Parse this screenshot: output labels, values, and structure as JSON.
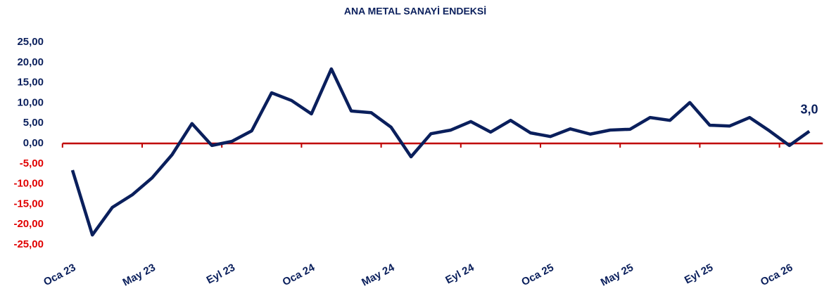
{
  "chart_data": {
    "type": "line",
    "title": "ANA METAL SANAYİ ENDEKSİ",
    "categories": [
      "Oca 23",
      null,
      null,
      null,
      "May 23",
      null,
      null,
      null,
      "Eyl 23",
      null,
      null,
      null,
      "Oca 24",
      null,
      null,
      null,
      "May 24",
      null,
      null,
      null,
      "Eyl 24",
      null,
      null,
      null,
      "Oca 25",
      null,
      null,
      null,
      "May 25",
      null,
      null,
      null,
      "Eyl 25",
      null,
      null,
      null,
      "Oca 26",
      null
    ],
    "series": [
      {
        "color": "#0a1f5c",
        "values": [
          -6.6,
          -22.6,
          -15.8,
          -12.7,
          -8.5,
          -2.8,
          4.9,
          -0.5,
          0.5,
          3.1,
          12.5,
          10.6,
          7.3,
          18.4,
          8.0,
          7.6,
          4.0,
          -3.3,
          2.4,
          3.3,
          5.4,
          2.8,
          5.7,
          2.6,
          1.7,
          3.6,
          2.3,
          3.3,
          3.5,
          6.4,
          5.7,
          10.1,
          4.5,
          4.3,
          6.4,
          3.1,
          -0.5,
          3.0
        ],
        "value_labels": [
          null,
          null,
          null,
          null,
          null,
          null,
          null,
          null,
          null,
          null,
          null,
          null,
          null,
          null,
          null,
          null,
          null,
          null,
          null,
          null,
          null,
          null,
          null,
          null,
          null,
          null,
          null,
          null,
          null,
          null,
          null,
          null,
          null,
          null,
          null,
          null,
          null,
          "3,0"
        ]
      }
    ],
    "ylim": [
      -25,
      25
    ],
    "yticks": [
      {
        "value": 25,
        "label": "25,00"
      },
      {
        "value": 20,
        "label": "20,00"
      },
      {
        "value": 15,
        "label": "15,00"
      },
      {
        "value": 10,
        "label": "10,00"
      },
      {
        "value": 5,
        "label": "5,00"
      },
      {
        "value": 0,
        "label": "0,00"
      },
      {
        "value": -5,
        "label": "-5,00"
      },
      {
        "value": -10,
        "label": "-10,00"
      },
      {
        "value": -15,
        "label": "-15,00"
      },
      {
        "value": -20,
        "label": "-20,00"
      },
      {
        "value": -25,
        "label": "-25,00"
      }
    ],
    "tick_color": "#0a1f5c",
    "negative_tick_color": "#e00000",
    "zero_line_color": "#c00000",
    "grid": false
  }
}
